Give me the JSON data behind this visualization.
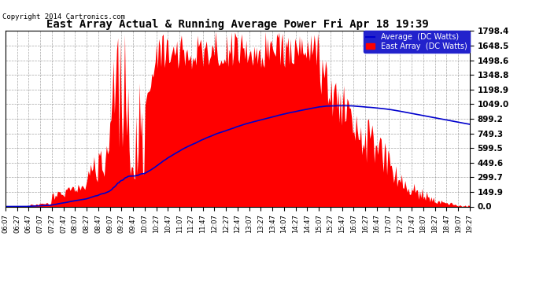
{
  "title": "East Array Actual & Running Average Power Fri Apr 18 19:39",
  "copyright": "Copyright 2014 Cartronics.com",
  "legend_avg": "Average  (DC Watts)",
  "legend_east": "East Array  (DC Watts)",
  "ylabel_values": [
    0.0,
    149.9,
    299.7,
    449.6,
    599.5,
    749.3,
    899.2,
    1049.0,
    1198.9,
    1348.8,
    1498.6,
    1648.5,
    1798.4
  ],
  "ymax": 1798.4,
  "ymin": 0.0,
  "plot_bg": "#ffffff",
  "fill_color": "#ff0000",
  "avg_line_color": "#0000cd",
  "x_tick_labels": [
    "06:07",
    "06:27",
    "06:47",
    "07:07",
    "07:27",
    "07:47",
    "08:07",
    "08:27",
    "08:47",
    "09:07",
    "09:27",
    "09:47",
    "10:07",
    "10:27",
    "10:47",
    "11:07",
    "11:27",
    "11:47",
    "12:07",
    "12:27",
    "12:47",
    "13:07",
    "13:27",
    "13:47",
    "14:07",
    "14:27",
    "14:47",
    "15:07",
    "15:27",
    "15:47",
    "16:07",
    "16:27",
    "16:47",
    "17:07",
    "17:27",
    "17:47",
    "18:07",
    "18:27",
    "18:47",
    "19:07",
    "19:27"
  ]
}
